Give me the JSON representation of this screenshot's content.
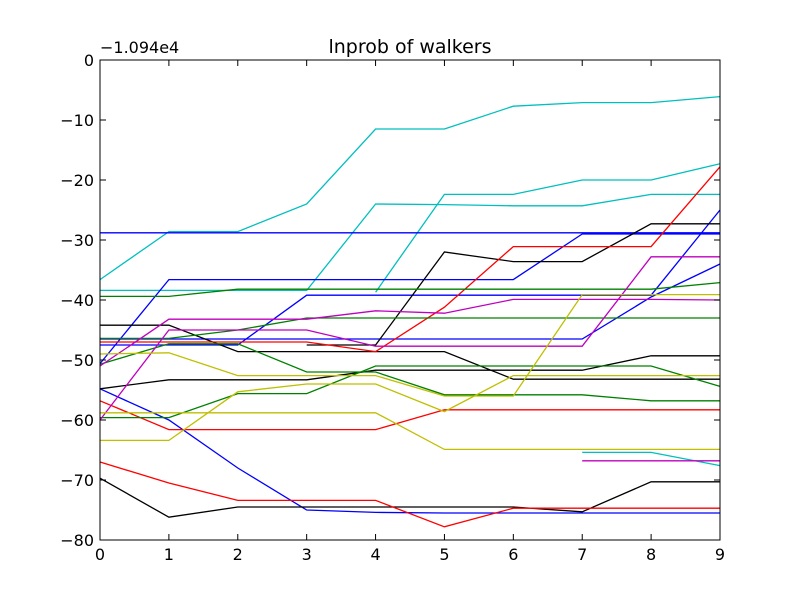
{
  "chart_data": {
    "type": "line",
    "title": "lnprob of walkers",
    "y_offset_label": "−1.094e4",
    "xlabel": "",
    "ylabel": "",
    "xlim": [
      0,
      9
    ],
    "ylim": [
      -80,
      0
    ],
    "x_ticks": [
      "0",
      "1",
      "2",
      "3",
      "4",
      "5",
      "6",
      "7",
      "8",
      "9"
    ],
    "y_ticks": [
      {
        "value": 0,
        "label": "0"
      },
      {
        "value": -10,
        "label": "−10"
      },
      {
        "value": -20,
        "label": "−20"
      },
      {
        "value": -30,
        "label": "−30"
      },
      {
        "value": -40,
        "label": "−40"
      },
      {
        "value": -50,
        "label": "−50"
      },
      {
        "value": -60,
        "label": "−60"
      },
      {
        "value": -70,
        "label": "−70"
      },
      {
        "value": -80,
        "label": "−80"
      }
    ],
    "grid": false,
    "legend": "none",
    "x": [
      0,
      1,
      2,
      3,
      4,
      5,
      6,
      7,
      8,
      9
    ],
    "series": [
      {
        "color": "#00bfbf",
        "values": [
          -36.6,
          -28.6,
          -28.6,
          -24.0,
          -11.5,
          -11.5,
          -7.7,
          -7.1,
          -7.1,
          -6.1
        ]
      },
      {
        "color": "#00bfbf",
        "values": [
          -38.4,
          -38.4,
          -38.4,
          -38.4,
          -24.0,
          -24.1,
          -24.3,
          -24.3,
          -22.4,
          -22.4
        ]
      },
      {
        "color": "#00bfbf",
        "values": [
          null,
          null,
          null,
          null,
          -38.7,
          -22.4,
          -22.4,
          -20.0,
          -20.0,
          -17.3
        ]
      },
      {
        "color": "#00bfbf",
        "values": [
          null,
          null,
          null,
          null,
          null,
          null,
          null,
          -65.4,
          -65.4,
          -67.6
        ]
      },
      {
        "color": "#0000ff",
        "values": [
          -28.8,
          -28.8,
          -28.8,
          -28.8,
          -28.8,
          -28.8,
          -28.8,
          -28.8,
          -28.8,
          -28.8
        ]
      },
      {
        "color": "#0000ff",
        "values": [
          -50.6,
          -36.6,
          -36.6,
          -36.6,
          -36.6,
          -36.6,
          -36.6,
          -29.0,
          -29.0,
          -29.0
        ]
      },
      {
        "color": "#0000ff",
        "values": [
          -47.5,
          -47.5,
          -47.5,
          -39.2,
          -39.2,
          -39.2,
          -39.2,
          -39.2,
          -39.2,
          -25.0
        ]
      },
      {
        "color": "#0000ff",
        "values": [
          null,
          -47.4,
          -47.4,
          null,
          null,
          null,
          null,
          null,
          null,
          null
        ]
      },
      {
        "color": "#0000ff",
        "values": [
          -54.8,
          -60.0,
          -68.0,
          -75.0,
          -75.4,
          -75.5,
          -75.5,
          -75.5,
          -75.5,
          -75.5
        ]
      },
      {
        "color": "#0000ff",
        "values": [
          -46.5,
          -46.5,
          -46.5,
          -46.5,
          -46.5,
          -46.5,
          -46.5,
          -46.5,
          -39.5,
          -34.0
        ]
      },
      {
        "color": "#000000",
        "values": [
          -44.2,
          -44.2,
          -48.6,
          -48.6,
          -48.6,
          -48.6,
          -53.2,
          -53.2,
          -53.2,
          -53.2
        ]
      },
      {
        "color": "#000000",
        "values": [
          null,
          null,
          null,
          -47.5,
          -47.5,
          -32.0,
          -33.6,
          -33.6,
          -27.3,
          -27.3
        ]
      },
      {
        "color": "#000000",
        "values": [
          -54.8,
          -53.3,
          -53.3,
          -53.3,
          -51.7,
          -51.7,
          -51.7,
          -51.7,
          -49.3,
          -49.3
        ]
      },
      {
        "color": "#000000",
        "values": [
          -69.7,
          -76.2,
          -74.5,
          -74.5,
          -74.5,
          -74.5,
          -74.5,
          -75.3,
          -70.3,
          -70.3
        ]
      },
      {
        "color": "#ff0000",
        "values": [
          -47.0,
          -47.0,
          -47.0,
          -47.0,
          -48.6,
          -41.2,
          -31.1,
          -31.1,
          -31.1,
          -17.8
        ]
      },
      {
        "color": "#ff0000",
        "values": [
          -56.8,
          -61.6,
          -61.6,
          -61.6,
          -61.6,
          -58.3,
          -58.3,
          -58.3,
          -58.3,
          -58.3
        ]
      },
      {
        "color": "#ff0000",
        "values": [
          -67.0,
          -70.5,
          -73.4,
          -73.4,
          -73.4,
          -77.8,
          -74.7,
          -74.7,
          -74.7,
          -74.7
        ]
      },
      {
        "color": "#008000",
        "values": [
          -39.4,
          -39.4,
          -38.2,
          -38.2,
          -38.2,
          -38.2,
          -38.2,
          -38.2,
          -38.2,
          -37.1
        ]
      },
      {
        "color": "#008000",
        "values": [
          -59.6,
          -59.6,
          -55.6,
          -55.6,
          -51.0,
          -51.0,
          -51.0,
          -51.0,
          -51.0,
          -54.4
        ]
      },
      {
        "color": "#008000",
        "values": [
          -46.4,
          -46.4,
          -45.0,
          -43.0,
          -43.0,
          -43.0,
          -43.0,
          -43.0,
          -43.0,
          -43.0
        ]
      },
      {
        "color": "#008000",
        "values": [
          -50.7,
          -47.3,
          -47.3,
          -52.0,
          -52.0,
          -55.8,
          -55.8,
          -55.8,
          -56.8,
          -56.8
        ]
      },
      {
        "color": "#bf00bf",
        "values": [
          -51.0,
          -43.2,
          -43.2,
          -43.2,
          -41.8,
          -42.2,
          -39.9,
          -39.9,
          -39.9,
          -40.0
        ]
      },
      {
        "color": "#bf00bf",
        "values": [
          -60.0,
          -45.0,
          -45.0,
          -45.0,
          -47.7,
          -47.7,
          -47.7,
          -47.7,
          -32.8,
          -32.8
        ]
      },
      {
        "color": "#bf00bf",
        "values": [
          null,
          null,
          null,
          null,
          null,
          null,
          null,
          -66.8,
          -66.8,
          -66.8
        ]
      },
      {
        "color": "#bfbf00",
        "values": [
          -49.0,
          -48.8,
          -52.6,
          -52.6,
          -52.6,
          -56.0,
          -56.0,
          -39.1,
          -39.1,
          -39.1
        ]
      },
      {
        "color": "#bfbf00",
        "values": [
          -63.4,
          -63.4,
          -55.3,
          -54.0,
          -54.0,
          -58.6,
          -52.6,
          -52.6,
          -52.6,
          -52.6
        ]
      },
      {
        "color": "#bfbf00",
        "values": [
          -58.8,
          -58.8,
          -58.8,
          -58.8,
          -58.8,
          -64.9,
          -64.9,
          -64.9,
          -64.9,
          -64.9
        ]
      }
    ]
  }
}
